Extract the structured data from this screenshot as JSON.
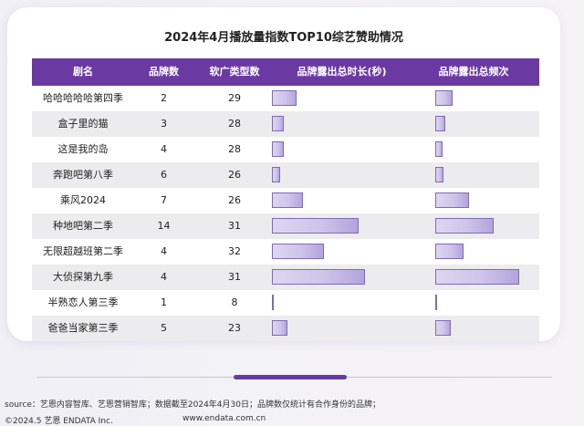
{
  "chart_data": {
    "type": "table",
    "title": "2024年4月播放量指数TOP10综艺赞助情况",
    "columns": [
      "剧名",
      "品牌数",
      "软广类型数",
      "品牌露出总时长(秒)",
      "品牌露出总频次"
    ],
    "rows": [
      {
        "name": "哈哈哈哈哈第四季",
        "brands": "2",
        "ad_types": "29",
        "duration": 27,
        "frequency": 19
      },
      {
        "name": "盒子里的猫",
        "brands": "3",
        "ad_types": "28",
        "duration": 13,
        "frequency": 11
      },
      {
        "name": "这是我的岛",
        "brands": "4",
        "ad_types": "28",
        "duration": 13,
        "frequency": 8
      },
      {
        "name": "奔跑吧第八季",
        "brands": "6",
        "ad_types": "26",
        "duration": 9,
        "frequency": 9
      },
      {
        "name": "乘风2024",
        "brands": "7",
        "ad_types": "26",
        "duration": 34,
        "frequency": 37
      },
      {
        "name": "种地吧第二季",
        "brands": "14",
        "ad_types": "31",
        "duration": 95,
        "frequency": 64
      },
      {
        "name": "无限超越班第二季",
        "brands": "4",
        "ad_types": "32",
        "duration": 57,
        "frequency": 31
      },
      {
        "name": "大侦探第九季",
        "brands": "4",
        "ad_types": "31",
        "duration": 102,
        "frequency": 92
      },
      {
        "name": "半熟恋人第三季",
        "brands": "1",
        "ad_types": "8",
        "duration": 1,
        "frequency": 1
      },
      {
        "name": "爸爸当家第三季",
        "brands": "5",
        "ad_types": "23",
        "duration": 17,
        "frequency": 17
      }
    ],
    "duration_max": 102,
    "frequency_max": 92
  },
  "footer": {
    "source": "source：艺恩内容智库、艺恩营销智库；数据截至2024年4月30日；品牌数仅统计有合作身份的品牌；",
    "copyright": "©2024.5 艺恩 ENDATA Inc.",
    "website": "www.endata.com.cn"
  }
}
